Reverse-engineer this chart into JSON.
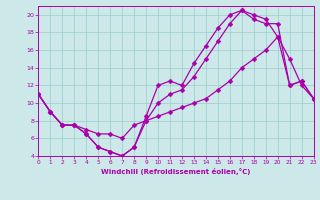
{
  "xlabel": "Windchill (Refroidissement éolien,°C)",
  "bg_color": "#cce8e8",
  "line_color": "#aa00aa",
  "grid_color": "#99cccc",
  "xlim": [
    0,
    23
  ],
  "ylim": [
    4,
    21
  ],
  "xticks": [
    0,
    1,
    2,
    3,
    4,
    5,
    6,
    7,
    8,
    9,
    10,
    11,
    12,
    13,
    14,
    15,
    16,
    17,
    18,
    19,
    20,
    21,
    22,
    23
  ],
  "yticks": [
    4,
    6,
    8,
    10,
    12,
    14,
    16,
    18,
    20
  ],
  "line1_x": [
    0,
    1,
    2,
    3,
    4,
    5,
    6,
    7,
    8,
    9,
    10,
    11,
    12,
    13,
    14,
    15,
    16,
    17,
    18,
    19,
    20,
    21,
    22,
    23
  ],
  "line1_y": [
    11,
    9,
    7.5,
    7.5,
    6.5,
    5,
    4.5,
    4,
    5,
    8.5,
    12,
    12.5,
    12,
    14.5,
    16.5,
    18.5,
    20,
    20.5,
    20,
    19.5,
    17.5,
    15,
    12,
    10.5
  ],
  "line2_x": [
    0,
    1,
    2,
    3,
    4,
    5,
    6,
    7,
    8,
    9,
    10,
    11,
    12,
    13,
    14,
    15,
    16,
    17,
    18,
    19,
    20,
    21,
    22,
    23
  ],
  "line2_y": [
    11,
    9,
    7.5,
    7.5,
    6.5,
    5,
    4.5,
    4,
    5,
    8,
    10,
    11,
    11.5,
    13,
    15,
    17,
    19,
    20.5,
    19.5,
    19,
    19,
    12,
    12.5,
    10.5
  ],
  "line3_x": [
    0,
    1,
    2,
    3,
    4,
    5,
    6,
    7,
    8,
    9,
    10,
    11,
    12,
    13,
    14,
    15,
    16,
    17,
    18,
    19,
    20,
    21,
    22,
    23
  ],
  "line3_y": [
    11,
    9,
    7.5,
    7.5,
    7,
    6.5,
    6.5,
    6,
    7.5,
    8,
    8.5,
    9,
    9.5,
    10,
    10.5,
    11.5,
    12.5,
    14,
    15,
    16,
    17.5,
    12,
    12.5,
    10.5
  ]
}
